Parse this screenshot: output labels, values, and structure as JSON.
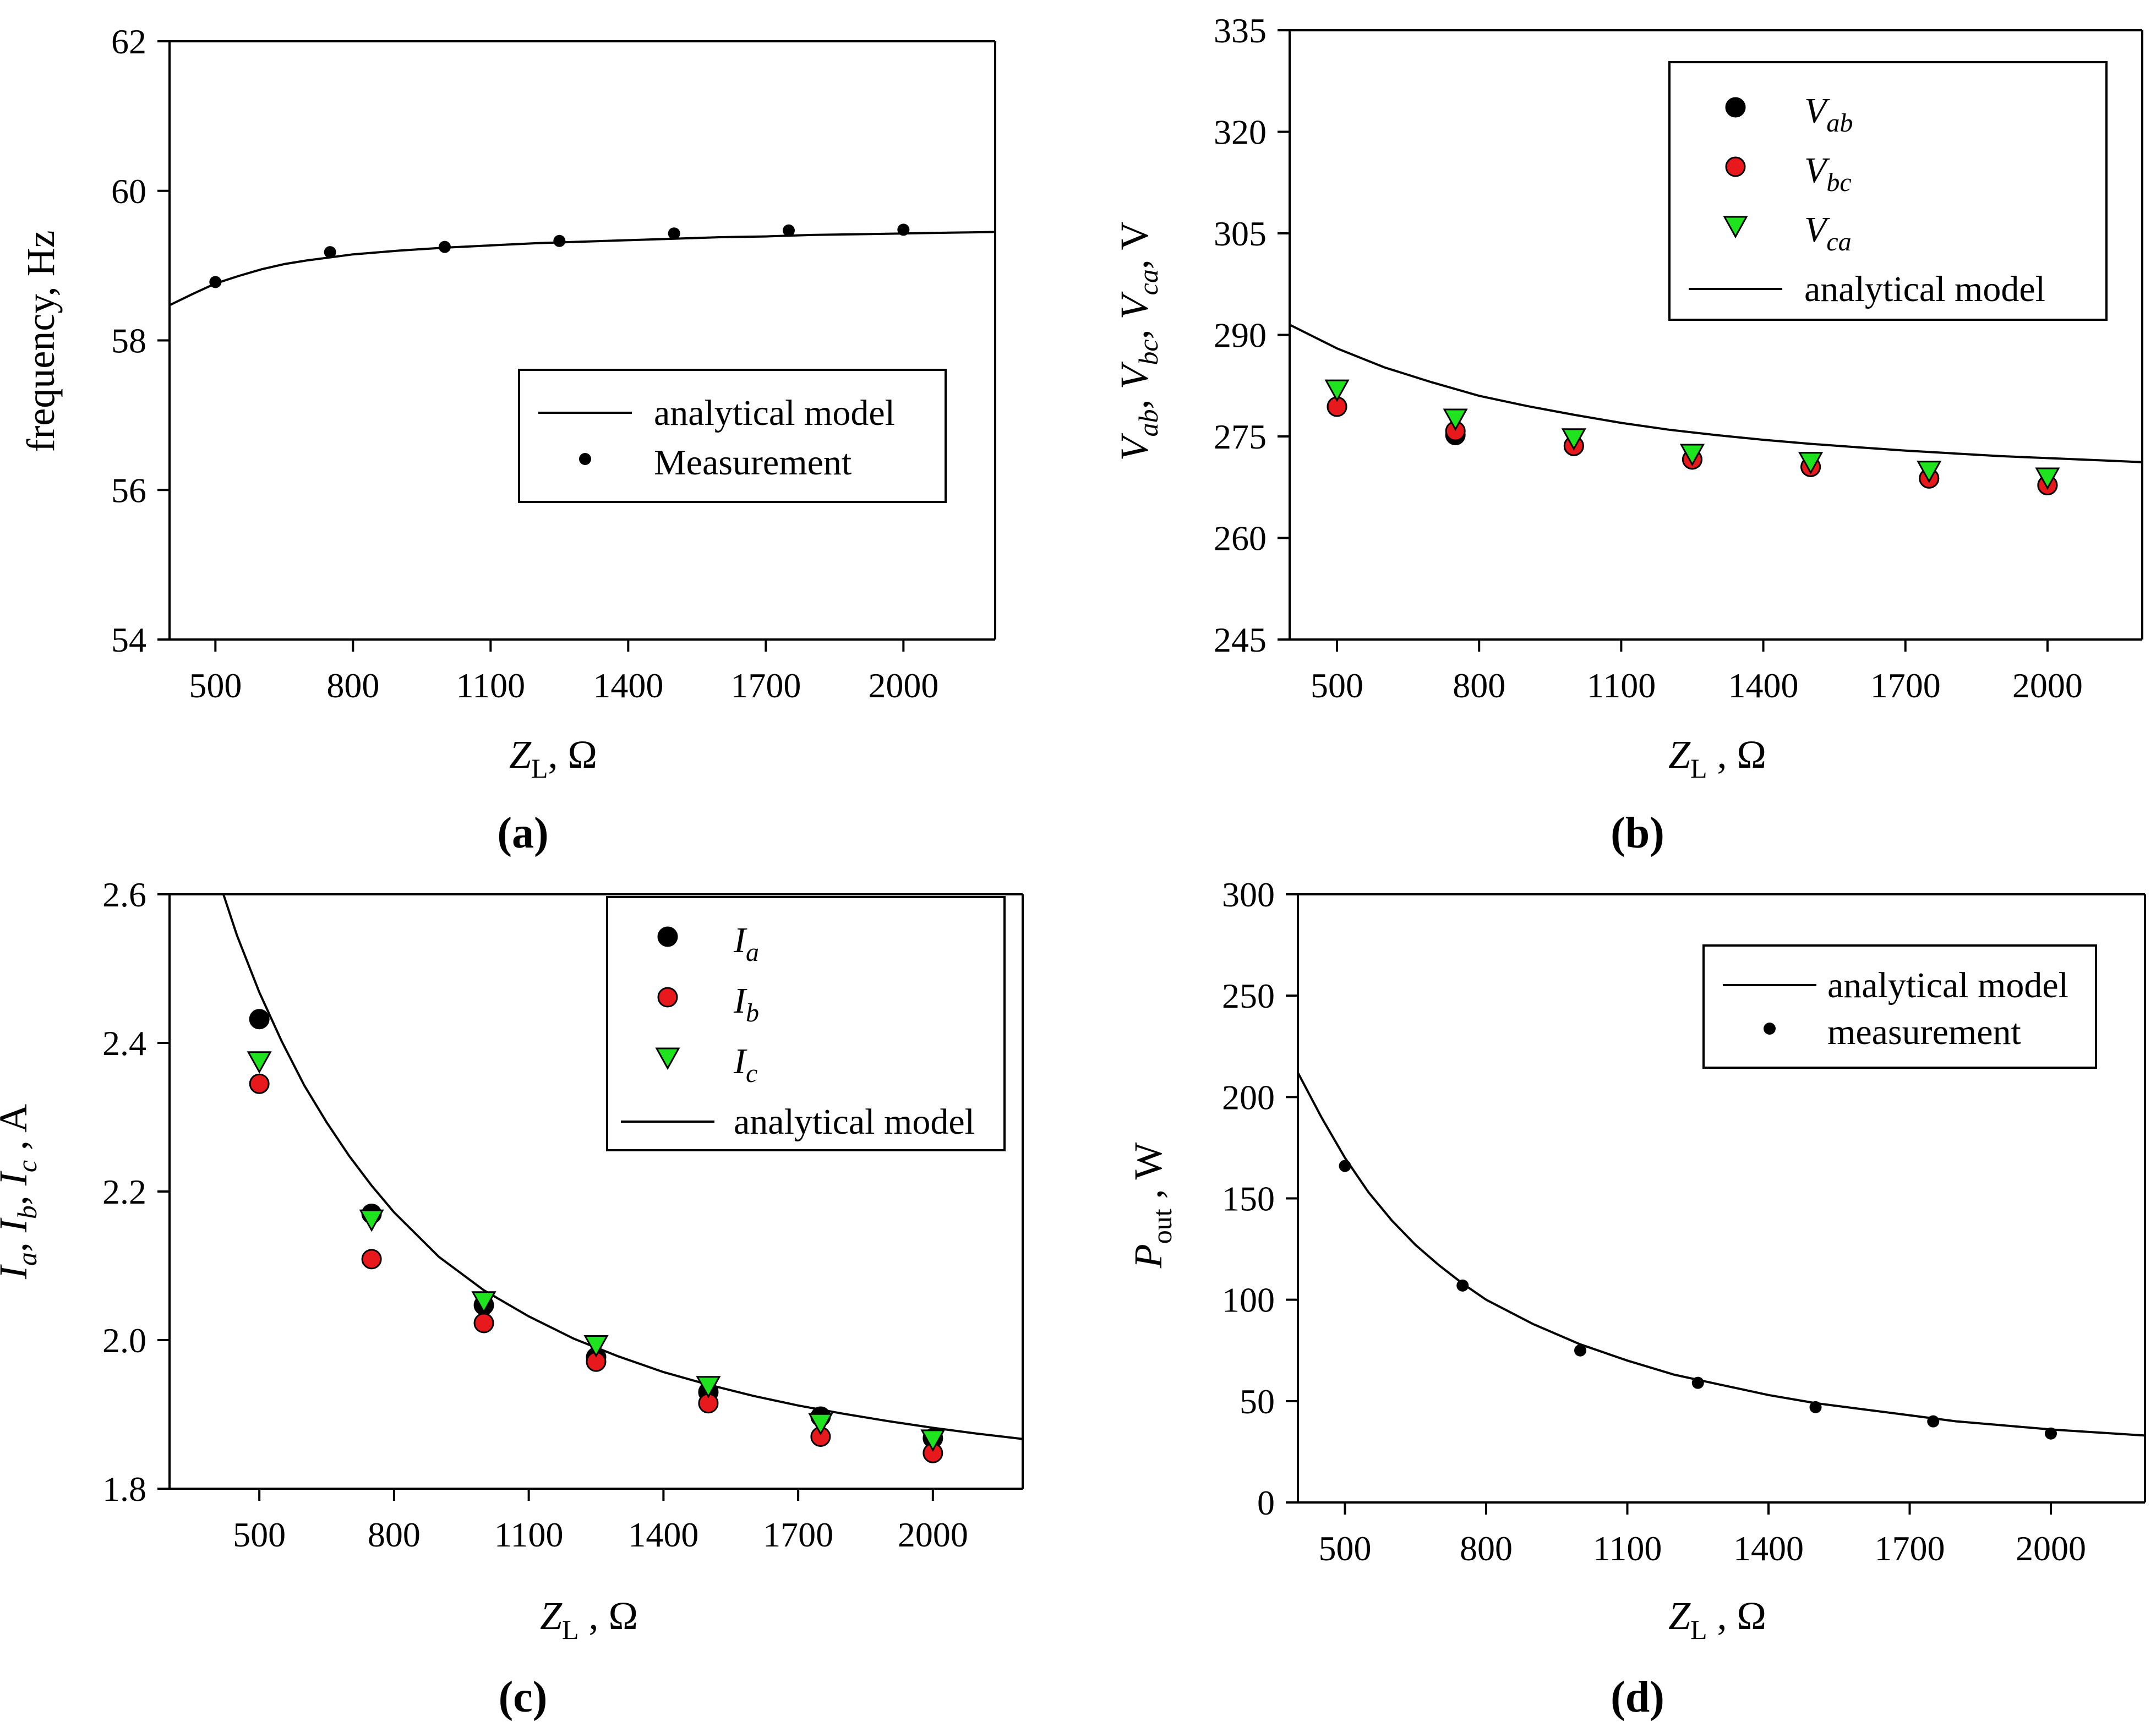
{
  "chart_data": [
    {
      "id": "a",
      "panel_label": "(a)",
      "type": "line+scatter",
      "xlabel": {
        "main": "Z",
        "sub": "L",
        "rest": ", Ω"
      },
      "ylabel": "frequency, Hz",
      "xlim": [
        400,
        2200
      ],
      "ylim": [
        54,
        62
      ],
      "xticks": [
        500,
        800,
        1100,
        1400,
        1700,
        2000
      ],
      "yticks": [
        54,
        56,
        58,
        60,
        62
      ],
      "legend_position": "center-right",
      "series": [
        {
          "name": "analytical model",
          "kind": "line",
          "x": [
            400,
            450,
            500,
            550,
            600,
            650,
            700,
            750,
            800,
            900,
            1000,
            1100,
            1200,
            1300,
            1400,
            1500,
            1600,
            1700,
            1800,
            1900,
            2000,
            2100,
            2200
          ],
          "y": [
            58.47,
            58.62,
            58.76,
            58.86,
            58.95,
            59.02,
            59.07,
            59.11,
            59.15,
            59.2,
            59.24,
            59.27,
            59.3,
            59.32,
            59.34,
            59.36,
            59.38,
            59.39,
            59.41,
            59.42,
            59.43,
            59.44,
            59.45
          ]
        },
        {
          "name": "Measurement",
          "kind": "scatter",
          "marker": "dot",
          "color": "#000000",
          "x": [
            500,
            750,
            1000,
            1250,
            1500,
            1750,
            2000
          ],
          "y": [
            58.78,
            59.18,
            59.25,
            59.33,
            59.43,
            59.47,
            59.48
          ]
        }
      ]
    },
    {
      "id": "b",
      "panel_label": "(b)",
      "type": "line+scatter",
      "xlabel": {
        "main": "Z",
        "sub": "L",
        "rest": " , Ω"
      },
      "ylabel": "Vab, Vbc, Vca, V",
      "ylabel_parts": [
        {
          "main": "V",
          "sub": "ab",
          "rest": ", "
        },
        {
          "main": "V",
          "sub": "bc",
          "rest": ", "
        },
        {
          "main": "V",
          "sub": "ca",
          "rest": ", V"
        }
      ],
      "xlim": [
        400,
        2200
      ],
      "ylim": [
        245,
        335
      ],
      "xticks": [
        500,
        800,
        1100,
        1400,
        1700,
        2000
      ],
      "yticks": [
        245,
        260,
        275,
        290,
        305,
        320,
        335
      ],
      "legend_position": "top-right",
      "series": [
        {
          "name": "analytical model",
          "kind": "line",
          "x": [
            400,
            500,
            600,
            700,
            800,
            900,
            1000,
            1100,
            1200,
            1300,
            1400,
            1500,
            1600,
            1700,
            1800,
            1900,
            2000,
            2100,
            2200
          ],
          "y": [
            291.5,
            288,
            285.2,
            283,
            281,
            279.5,
            278.2,
            277,
            276,
            275.2,
            274.5,
            273.9,
            273.4,
            272.9,
            272.5,
            272.1,
            271.8,
            271.5,
            271.2
          ]
        },
        {
          "name": "Vab",
          "label_main": "V",
          "label_sub": "ab",
          "kind": "scatter",
          "marker": "circle",
          "color": "#000000",
          "x": [
            500,
            750,
            1000,
            1250,
            1500,
            1750,
            2000
          ],
          "y": [
            279.4,
            275.2,
            273.6,
            271.6,
            270.5,
            268.8,
            267.8
          ]
        },
        {
          "name": "Vbc",
          "label_main": "V",
          "label_sub": "bc",
          "kind": "scatter",
          "marker": "circle",
          "color": "#e8191d",
          "x": [
            500,
            750,
            1000,
            1250,
            1500,
            1750,
            2000
          ],
          "y": [
            279.4,
            275.8,
            273.6,
            271.6,
            270.5,
            268.8,
            267.8
          ]
        },
        {
          "name": "Vca",
          "label_main": "V",
          "label_sub": "ca",
          "kind": "scatter",
          "marker": "triangle",
          "color": "#1fe31f",
          "x": [
            500,
            750,
            1000,
            1250,
            1500,
            1750,
            2000
          ],
          "y": [
            281.9,
            277.6,
            274.7,
            272.4,
            271.2,
            269.9,
            268.9
          ]
        }
      ]
    },
    {
      "id": "c",
      "panel_label": "(c)",
      "type": "line+scatter",
      "xlabel": {
        "main": "Z",
        "sub": "L",
        "rest": " , Ω"
      },
      "ylabel": "Ia, Ib, Ic , A",
      "ylabel_parts": [
        {
          "main": "I",
          "sub": "a",
          "rest": ", "
        },
        {
          "main": "I",
          "sub": "b",
          "rest": ", "
        },
        {
          "main": "I",
          "sub": "c",
          "rest": " , A"
        }
      ],
      "xlim": [
        300,
        2200
      ],
      "ylim": [
        1.8,
        2.6
      ],
      "xticks": [
        500,
        800,
        1100,
        1400,
        1700,
        2000
      ],
      "yticks": [
        1.8,
        2.0,
        2.2,
        2.4,
        2.6
      ],
      "ytick_format": 1,
      "legend_position": "top-right",
      "series": [
        {
          "name": "analytical model",
          "kind": "line",
          "x": [
            420,
            450,
            500,
            550,
            600,
            650,
            700,
            750,
            800,
            900,
            1000,
            1100,
            1200,
            1300,
            1400,
            1500,
            1600,
            1700,
            1800,
            1900,
            2000,
            2100,
            2200
          ],
          "y": [
            2.6,
            2.545,
            2.468,
            2.402,
            2.343,
            2.293,
            2.248,
            2.208,
            2.172,
            2.112,
            2.067,
            2.032,
            2.002,
            1.978,
            1.957,
            1.94,
            1.925,
            1.912,
            1.901,
            1.891,
            1.882,
            1.874,
            1.867
          ]
        },
        {
          "name": "Ia",
          "label_main": "I",
          "label_sub": "a",
          "kind": "scatter",
          "marker": "circle",
          "color": "#000000",
          "x": [
            500,
            750,
            1000,
            1250,
            1500,
            1750,
            2000
          ],
          "y": [
            2.432,
            2.17,
            2.047,
            1.977,
            1.93,
            1.897,
            1.868
          ]
        },
        {
          "name": "Ib",
          "label_main": "I",
          "label_sub": "b",
          "kind": "scatter",
          "marker": "circle",
          "color": "#e8191d",
          "x": [
            500,
            750,
            1000,
            1250,
            1500,
            1750,
            2000
          ],
          "y": [
            2.345,
            2.109,
            2.023,
            1.971,
            1.915,
            1.87,
            1.848
          ]
        },
        {
          "name": "Ic",
          "label_main": "I",
          "label_sub": "c",
          "kind": "scatter",
          "marker": "triangle",
          "color": "#1fe31f",
          "x": [
            500,
            750,
            1000,
            1250,
            1500,
            1750,
            2000
          ],
          "y": [
            2.375,
            2.162,
            2.052,
            1.993,
            1.938,
            1.888,
            1.866
          ]
        }
      ]
    },
    {
      "id": "d",
      "panel_label": "(d)",
      "type": "line+scatter",
      "xlabel": {
        "main": "Z",
        "sub": "L",
        "rest": " , Ω"
      },
      "ylabel": "Pout , W",
      "ylabel_parts": [
        {
          "main": "P",
          "sub": "out",
          "rest": " , W"
        }
      ],
      "xlim": [
        400,
        2200
      ],
      "ylim": [
        0,
        300
      ],
      "xticks": [
        500,
        800,
        1100,
        1400,
        1700,
        2000
      ],
      "yticks": [
        0,
        50,
        100,
        150,
        200,
        250,
        300
      ],
      "legend_position": "top-right",
      "series": [
        {
          "name": "analytical model",
          "kind": "line",
          "x": [
            400,
            450,
            500,
            550,
            600,
            650,
            700,
            750,
            800,
            900,
            1000,
            1100,
            1200,
            1300,
            1400,
            1500,
            1600,
            1700,
            1800,
            1900,
            2000,
            2100,
            2200
          ],
          "y": [
            212,
            190,
            170,
            153,
            139,
            127,
            117,
            108,
            100,
            88,
            78,
            70,
            63,
            58,
            53,
            49,
            46,
            43,
            40,
            38,
            36,
            34.5,
            33
          ]
        },
        {
          "name": "measurement",
          "kind": "scatter",
          "marker": "dot",
          "color": "#000000",
          "x": [
            500,
            750,
            1000,
            1250,
            1500,
            1750,
            2000
          ],
          "y": [
            166,
            107,
            75,
            59,
            47,
            40,
            34
          ]
        }
      ]
    }
  ]
}
